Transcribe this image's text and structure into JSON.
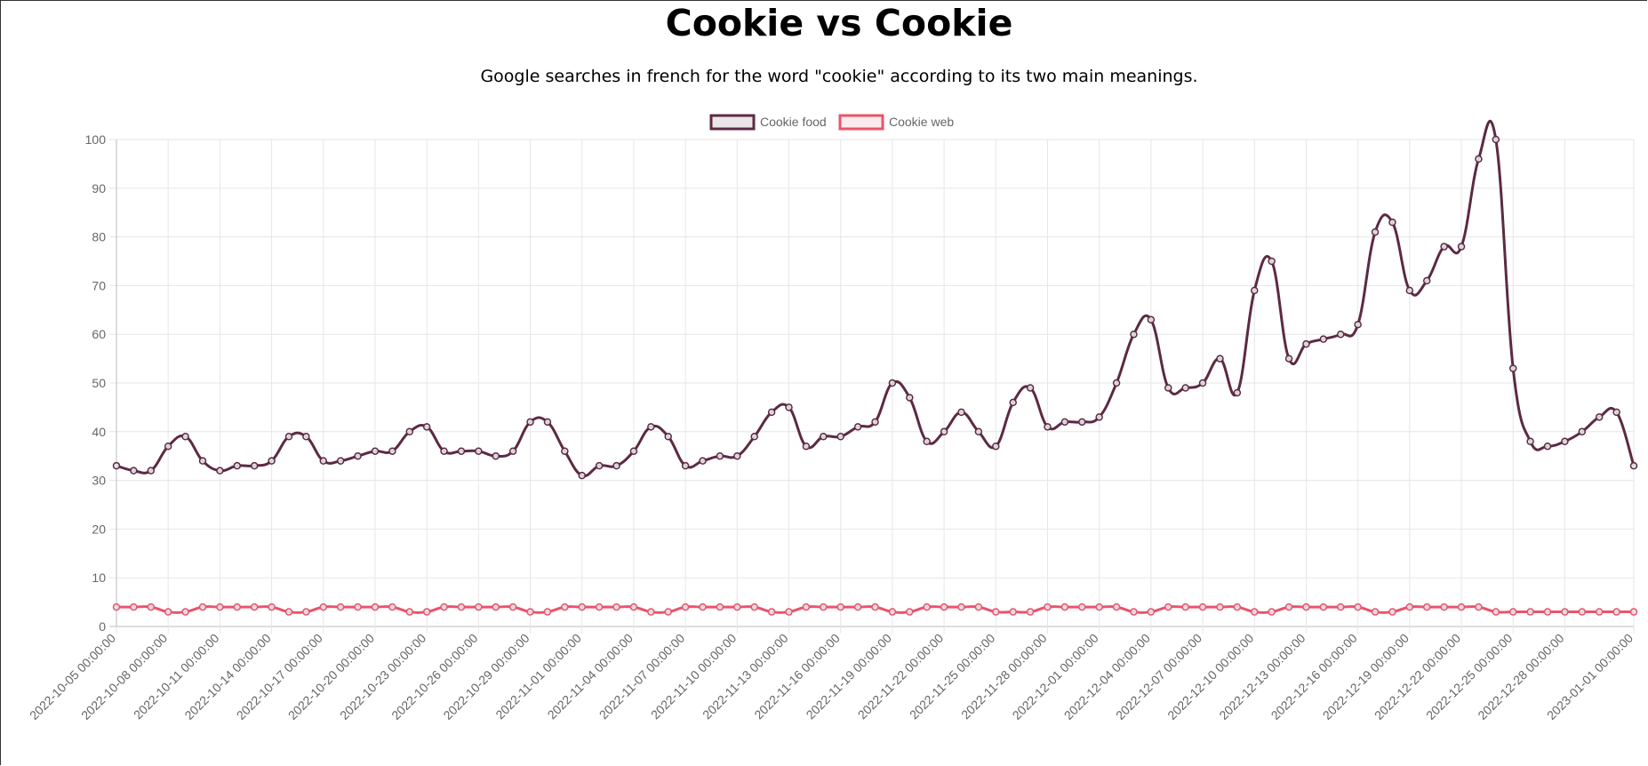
{
  "chart_data": {
    "type": "line",
    "title": "Cookie vs Cookie",
    "subtitle": "Google searches in french for the word \"cookie\" according to its two main meanings.",
    "x_tick_labels": [
      "2022-10-05 00:00:00",
      "2022-10-08 00:00:00",
      "2022-10-11 00:00:00",
      "2022-10-14 00:00:00",
      "2022-10-17 00:00:00",
      "2022-10-20 00:00:00",
      "2022-10-23 00:00:00",
      "2022-10-26 00:00:00",
      "2022-10-29 00:00:00",
      "2022-11-01 00:00:00",
      "2022-11-04 00:00:00",
      "2022-11-07 00:00:00",
      "2022-11-10 00:00:00",
      "2022-11-13 00:00:00",
      "2022-11-16 00:00:00",
      "2022-11-19 00:00:00",
      "2022-11-22 00:00:00",
      "2022-11-25 00:00:00",
      "2022-11-28 00:00:00",
      "2022-12-01 00:00:00",
      "2022-12-04 00:00:00",
      "2022-12-07 00:00:00",
      "2022-12-10 00:00:00",
      "2022-12-13 00:00:00",
      "2022-12-16 00:00:00",
      "2022-12-19 00:00:00",
      "2022-12-22 00:00:00",
      "2022-12-25 00:00:00",
      "2022-12-28 00:00:00",
      "2023-01-01 00:00:00"
    ],
    "x_range": [
      "2022-10-05",
      "2023-01-01"
    ],
    "ylim": [
      0,
      100
    ],
    "y_ticks": [
      0,
      10,
      20,
      30,
      40,
      50,
      60,
      70,
      80,
      90,
      100
    ],
    "grid": true,
    "legend_position": "top-center",
    "series": [
      {
        "name": "Cookie food",
        "color": "#5c2a42",
        "values": [
          33,
          32,
          32,
          37,
          39,
          34,
          32,
          33,
          33,
          34,
          39,
          39,
          34,
          34,
          35,
          36,
          36,
          40,
          41,
          36,
          36,
          36,
          35,
          36,
          42,
          42,
          36,
          31,
          33,
          33,
          36,
          41,
          39,
          33,
          34,
          35,
          35,
          39,
          44,
          45,
          37,
          39,
          39,
          41,
          42,
          50,
          47,
          38,
          40,
          44,
          40,
          37,
          46,
          49,
          41,
          42,
          42,
          43,
          50,
          60,
          63,
          49,
          49,
          50,
          55,
          48,
          69,
          75,
          55,
          58,
          59,
          60,
          62,
          81,
          83,
          69,
          71,
          78,
          78,
          96,
          100,
          53,
          38,
          37,
          38,
          40,
          43,
          44,
          33
        ]
      },
      {
        "name": "Cookie web",
        "color": "#e8546c",
        "values": [
          4,
          4,
          4,
          3,
          3,
          4,
          4,
          4,
          4,
          4,
          3,
          3,
          4,
          4,
          4,
          4,
          4,
          3,
          3,
          4,
          4,
          4,
          4,
          4,
          3,
          3,
          4,
          4,
          4,
          4,
          4,
          3,
          3,
          4,
          4,
          4,
          4,
          4,
          3,
          3,
          4,
          4,
          4,
          4,
          4,
          3,
          3,
          4,
          4,
          4,
          4,
          3,
          3,
          3,
          4,
          4,
          4,
          4,
          4,
          3,
          3,
          4,
          4,
          4,
          4,
          4,
          3,
          3,
          4,
          4,
          4,
          4,
          4,
          3,
          3,
          4,
          4,
          4,
          4,
          4,
          3,
          3,
          3,
          3,
          3,
          3,
          3,
          3,
          3
        ]
      }
    ]
  }
}
